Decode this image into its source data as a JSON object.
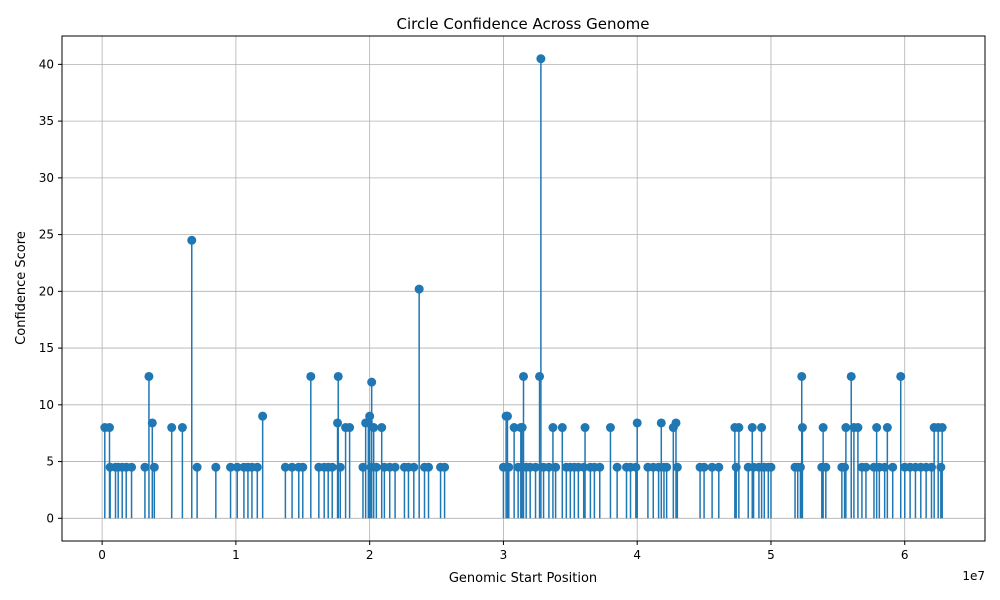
{
  "chart_data": {
    "type": "stem",
    "title": "Circle Confidence Across Genome",
    "xlabel": "Genomic Start Position",
    "ylabel": "Confidence Score",
    "x_scale_label": "1e7",
    "xlim": [
      -3000000,
      66000000
    ],
    "ylim": [
      -2,
      42.5
    ],
    "x_ticks": [
      0,
      10000000,
      20000000,
      30000000,
      40000000,
      50000000,
      60000000
    ],
    "x_tick_labels": [
      "0",
      "1",
      "2",
      "3",
      "4",
      "5",
      "6"
    ],
    "y_ticks": [
      0,
      5,
      10,
      15,
      20,
      25,
      30,
      35,
      40
    ],
    "y_tick_labels": [
      "0",
      "5",
      "10",
      "15",
      "20",
      "25",
      "30",
      "35",
      "40"
    ],
    "grid": true,
    "series_color": "#1f77b4",
    "points": [
      [
        200000,
        8.0
      ],
      [
        550000,
        8.0
      ],
      [
        600000,
        4.5
      ],
      [
        1000000,
        4.5
      ],
      [
        1200000,
        4.5
      ],
      [
        1500000,
        4.5
      ],
      [
        1800000,
        4.5
      ],
      [
        2200000,
        4.5
      ],
      [
        3200000,
        4.5
      ],
      [
        3500000,
        12.5
      ],
      [
        3750000,
        8.4
      ],
      [
        3900000,
        4.5
      ],
      [
        5200000,
        8.0
      ],
      [
        6000000,
        8.0
      ],
      [
        6700000,
        24.5
      ],
      [
        7100000,
        4.5
      ],
      [
        8500000,
        4.5
      ],
      [
        9600000,
        4.5
      ],
      [
        10100000,
        4.5
      ],
      [
        10600000,
        4.5
      ],
      [
        10900000,
        4.5
      ],
      [
        11200000,
        4.5
      ],
      [
        11600000,
        4.5
      ],
      [
        12000000,
        9.0
      ],
      [
        13700000,
        4.5
      ],
      [
        14200000,
        4.5
      ],
      [
        14700000,
        4.5
      ],
      [
        15000000,
        4.5
      ],
      [
        15600000,
        12.5
      ],
      [
        16200000,
        4.5
      ],
      [
        16600000,
        4.5
      ],
      [
        16900000,
        4.5
      ],
      [
        17200000,
        4.5
      ],
      [
        17600000,
        8.4
      ],
      [
        17650000,
        12.5
      ],
      [
        17800000,
        4.5
      ],
      [
        18200000,
        8.0
      ],
      [
        18500000,
        8.0
      ],
      [
        19500000,
        4.5
      ],
      [
        19700000,
        8.4
      ],
      [
        19900000,
        8.5
      ],
      [
        20000000,
        9.0
      ],
      [
        20100000,
        4.5
      ],
      [
        20150000,
        12.0
      ],
      [
        20300000,
        8.0
      ],
      [
        20500000,
        4.5
      ],
      [
        20900000,
        8.0
      ],
      [
        21100000,
        4.5
      ],
      [
        21500000,
        4.5
      ],
      [
        21900000,
        4.5
      ],
      [
        22600000,
        4.5
      ],
      [
        22900000,
        4.5
      ],
      [
        23300000,
        4.5
      ],
      [
        23700000,
        20.2
      ],
      [
        24100000,
        4.5
      ],
      [
        24400000,
        4.5
      ],
      [
        25300000,
        4.5
      ],
      [
        25600000,
        4.5
      ],
      [
        30000000,
        4.5
      ],
      [
        30200000,
        9.0
      ],
      [
        30300000,
        9.0
      ],
      [
        30400000,
        4.5
      ],
      [
        30800000,
        8.0
      ],
      [
        31100000,
        4.5
      ],
      [
        31300000,
        8.0
      ],
      [
        31400000,
        8.0
      ],
      [
        31500000,
        12.5
      ],
      [
        31700000,
        4.5
      ],
      [
        32000000,
        4.5
      ],
      [
        32400000,
        4.5
      ],
      [
        32700000,
        12.5
      ],
      [
        32800000,
        40.5
      ],
      [
        33000000,
        4.5
      ],
      [
        33400000,
        4.5
      ],
      [
        33700000,
        8.0
      ],
      [
        33900000,
        4.5
      ],
      [
        34400000,
        8.0
      ],
      [
        34700000,
        4.5
      ],
      [
        35000000,
        4.5
      ],
      [
        35300000,
        4.5
      ],
      [
        35600000,
        4.5
      ],
      [
        36000000,
        4.5
      ],
      [
        36100000,
        8.0
      ],
      [
        36500000,
        4.5
      ],
      [
        36800000,
        4.5
      ],
      [
        37200000,
        4.5
      ],
      [
        38000000,
        8.0
      ],
      [
        38500000,
        4.5
      ],
      [
        39200000,
        4.5
      ],
      [
        39500000,
        4.5
      ],
      [
        39900000,
        4.5
      ],
      [
        40000000,
        8.4
      ],
      [
        40800000,
        4.5
      ],
      [
        41200000,
        4.5
      ],
      [
        41600000,
        4.5
      ],
      [
        41800000,
        8.4
      ],
      [
        42000000,
        4.5
      ],
      [
        42200000,
        4.5
      ],
      [
        42700000,
        8.0
      ],
      [
        42900000,
        8.4
      ],
      [
        43000000,
        4.5
      ],
      [
        44700000,
        4.5
      ],
      [
        45000000,
        4.5
      ],
      [
        45600000,
        4.5
      ],
      [
        46100000,
        4.5
      ],
      [
        47300000,
        8.0
      ],
      [
        47400000,
        4.5
      ],
      [
        47600000,
        8.0
      ],
      [
        48300000,
        4.5
      ],
      [
        48600000,
        8.0
      ],
      [
        48700000,
        4.5
      ],
      [
        49100000,
        4.5
      ],
      [
        49300000,
        8.0
      ],
      [
        49500000,
        4.5
      ],
      [
        49800000,
        4.5
      ],
      [
        50000000,
        4.5
      ],
      [
        51800000,
        4.5
      ],
      [
        52000000,
        4.5
      ],
      [
        52200000,
        4.5
      ],
      [
        52300000,
        12.5
      ],
      [
        52350000,
        8.0
      ],
      [
        53800000,
        4.5
      ],
      [
        53900000,
        8.0
      ],
      [
        54100000,
        4.5
      ],
      [
        55300000,
        4.5
      ],
      [
        55500000,
        4.5
      ],
      [
        55600000,
        8.0
      ],
      [
        56000000,
        12.5
      ],
      [
        56200000,
        8.0
      ],
      [
        56500000,
        8.0
      ],
      [
        56800000,
        4.5
      ],
      [
        57100000,
        4.5
      ],
      [
        57700000,
        4.5
      ],
      [
        57900000,
        8.0
      ],
      [
        58100000,
        4.5
      ],
      [
        58500000,
        4.5
      ],
      [
        58700000,
        8.0
      ],
      [
        59100000,
        4.5
      ],
      [
        59700000,
        12.5
      ],
      [
        60000000,
        4.5
      ],
      [
        60400000,
        4.5
      ],
      [
        60800000,
        4.5
      ],
      [
        61200000,
        4.5
      ],
      [
        61600000,
        4.5
      ],
      [
        62000000,
        4.5
      ],
      [
        62200000,
        8.0
      ],
      [
        62500000,
        8.0
      ],
      [
        62700000,
        4.5
      ],
      [
        62800000,
        8.0
      ]
    ]
  }
}
